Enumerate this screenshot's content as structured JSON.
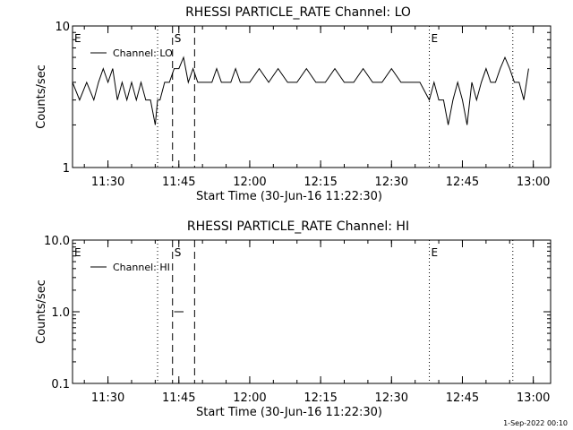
{
  "chart_data": [
    {
      "type": "line",
      "title": "RHESSI PARTICLE_RATE Channel: LO",
      "xlabel": "Start Time (30-Jun-16 11:22:30)",
      "ylabel": "Counts/sec",
      "y_scale": "log",
      "ylim": [
        1,
        10
      ],
      "xlim": [
        "11:22:30",
        "13:03:40"
      ],
      "x_ticks": [
        "11:30",
        "11:45",
        "12:00",
        "12:15",
        "12:30",
        "12:45",
        "13:00"
      ],
      "y_ticks": [
        "1",
        "10"
      ],
      "legend": {
        "position": "top-left",
        "entries": [
          "Channel: LO"
        ]
      },
      "grid": false,
      "series": [
        {
          "name": "Channel: LO",
          "x": [
            "11:22:30",
            "11:24:00",
            "11:25:30",
            "11:27:00",
            "11:28:00",
            "11:29:00",
            "11:30:00",
            "11:31:00",
            "11:32:00",
            "11:33:00",
            "11:34:00",
            "11:35:00",
            "11:36:00",
            "11:37:00",
            "11:38:00",
            "11:39:00",
            "11:40:00",
            "11:40:30",
            "11:41:00",
            "11:42:00",
            "11:43:00",
            "11:44:00",
            "11:45:00",
            "11:46:00",
            "11:47:00",
            "11:48:00",
            "11:49:00",
            "11:50:00",
            "11:51:00",
            "11:52:00",
            "11:53:00",
            "11:54:00",
            "11:55:00",
            "11:56:00",
            "11:57:00",
            "11:58:00",
            "12:00:00",
            "12:02:00",
            "12:04:00",
            "12:06:00",
            "12:08:00",
            "12:10:00",
            "12:12:00",
            "12:14:00",
            "12:16:00",
            "12:18:00",
            "12:20:00",
            "12:22:00",
            "12:24:00",
            "12:26:00",
            "12:28:00",
            "12:30:00",
            "12:32:00",
            "12:34:00",
            "12:36:00",
            "12:38:00",
            "12:39:00",
            "12:40:00",
            "12:41:00",
            "12:42:00",
            "12:43:00",
            "12:44:00",
            "12:45:00",
            "12:46:00",
            "12:47:00",
            "12:48:00",
            "12:49:00",
            "12:50:00",
            "12:51:00",
            "12:52:00",
            "12:53:00",
            "12:54:00",
            "12:55:00",
            "12:56:00",
            "12:57:00",
            "12:58:00",
            "12:59:00"
          ],
          "y": [
            4,
            3,
            4,
            3,
            4,
            5,
            4,
            5,
            3,
            4,
            3,
            4,
            3,
            4,
            3,
            3,
            2,
            3,
            3,
            4,
            4,
            5,
            5,
            6,
            4,
            5,
            4,
            4,
            4,
            4,
            5,
            4,
            4,
            4,
            5,
            4,
            4,
            5,
            4,
            5,
            4,
            4,
            5,
            4,
            4,
            5,
            4,
            4,
            5,
            4,
            4,
            5,
            4,
            4,
            4,
            3,
            4,
            3,
            3,
            2,
            3,
            4,
            3,
            2,
            4,
            3,
            4,
            5,
            4,
            4,
            5,
            6,
            5,
            4,
            4,
            3,
            5
          ]
        }
      ],
      "markers": [
        {
          "x": "11:40:30",
          "style": "dotted",
          "label": ""
        },
        {
          "x": "11:43:40",
          "style": "dashed",
          "label": "S"
        },
        {
          "x": "11:48:20",
          "style": "dashed",
          "label": ""
        },
        {
          "x": "12:38:00",
          "style": "dotted",
          "label": "E"
        },
        {
          "x": "12:55:40",
          "style": "dotted",
          "label": ""
        },
        {
          "x": "11:22:30",
          "style": "none",
          "label": "E"
        }
      ]
    },
    {
      "type": "line",
      "title": "RHESSI PARTICLE_RATE Channel: HI",
      "xlabel": "Start Time (30-Jun-16 11:22:30)",
      "ylabel": "Counts/sec",
      "y_scale": "log",
      "ylim": [
        0.1,
        10
      ],
      "xlim": [
        "11:22:30",
        "13:03:40"
      ],
      "x_ticks": [
        "11:30",
        "11:45",
        "12:00",
        "12:15",
        "12:30",
        "12:45",
        "13:00"
      ],
      "y_ticks": [
        "0.1",
        "1.0",
        "10.0"
      ],
      "legend": {
        "position": "top-left",
        "entries": [
          "Channel: HI"
        ]
      },
      "grid": false,
      "series": [
        {
          "name": "Channel: HI",
          "x": [
            "11:44:00",
            "11:46:00"
          ],
          "y": [
            1.0,
            1.0
          ]
        }
      ],
      "markers": [
        {
          "x": "11:40:30",
          "style": "dotted",
          "label": ""
        },
        {
          "x": "11:43:40",
          "style": "dashed",
          "label": "S"
        },
        {
          "x": "11:48:20",
          "style": "dashed",
          "label": ""
        },
        {
          "x": "12:38:00",
          "style": "dotted",
          "label": "E"
        },
        {
          "x": "12:55:40",
          "style": "dotted",
          "label": ""
        },
        {
          "x": "11:22:30",
          "style": "none",
          "label": "E"
        }
      ]
    }
  ],
  "footer": {
    "timestamp": "1-Sep-2022 00:10"
  }
}
